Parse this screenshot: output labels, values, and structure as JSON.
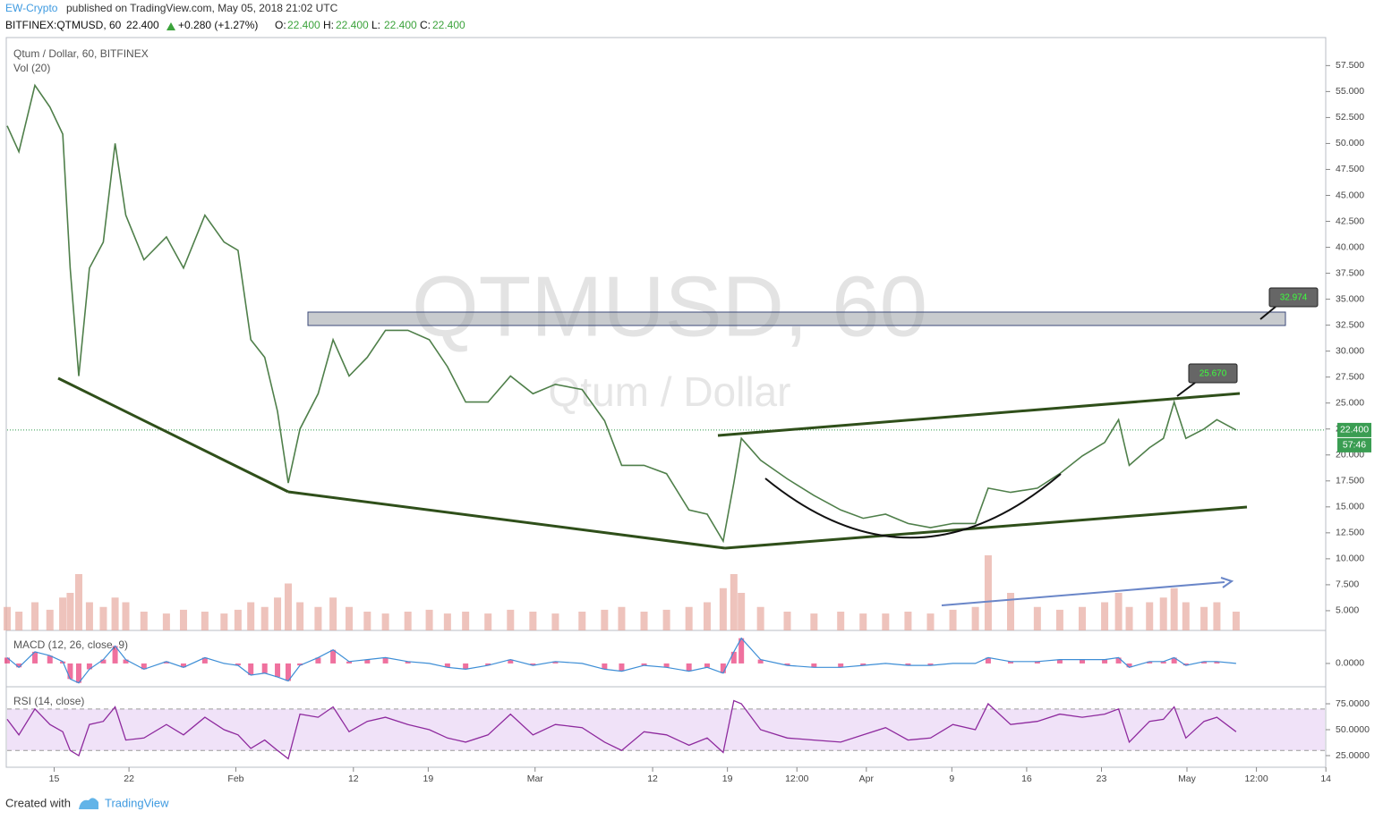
{
  "header": {
    "author": "EW-Crypto",
    "published": "published on TradingView.com, May 05, 2018 21:02 UTC",
    "symbol": "BITFINEX:QTMUSD, 60",
    "last": "22.400",
    "change": "+0.280 (+1.27%)",
    "ohlc": [
      {
        "label": "O:",
        "value": "22.400"
      },
      {
        "label": "H:",
        "value": "22.400"
      },
      {
        "label": "L:",
        "value": "22.400"
      },
      {
        "label": "C:",
        "value": "22.400"
      }
    ]
  },
  "footer": {
    "created": "Created with",
    "brand": "TradingView"
  },
  "chart_data": {
    "type": "line",
    "watermark": "QTMUSD, 60",
    "watermark_sub": "Qtum / Dollar",
    "price_label": "22.400",
    "countdown": "57:46",
    "annotations": [
      "32.974",
      "25.670"
    ],
    "x": [
      10.6,
      11.7,
      13.2,
      14.6,
      15.8,
      16.5,
      17.3,
      18.3,
      19.6,
      20.7,
      21.7,
      23.4,
      25.5,
      27.1,
      29.1,
      30.9,
      32.2,
      33.4,
      34.7,
      35.9,
      36.9,
      38,
      39.7,
      41.1,
      42.6,
      44.3,
      46,
      48.1,
      50.1,
      51.8,
      53.5,
      55.6,
      57.7,
      59.8,
      61.9,
      64.4,
      66.5,
      68.1,
      70.2,
      72.3,
      74.4,
      76.1,
      77.6,
      78.6,
      79.3,
      81.1,
      83.6,
      86.1,
      88.6,
      90.7,
      92.8,
      94.9,
      97,
      99.1,
      101.2,
      102.4,
      104.5,
      107,
      109.1,
      111.2,
      113.3,
      114.6,
      115.6,
      117.5,
      118.8,
      119.8,
      120.9,
      122.6,
      123.8,
      125.6
    ],
    "xlim": [
      10.6,
      133.9
    ],
    "xticks": [
      {
        "value": 15,
        "label": "15"
      },
      {
        "value": 22,
        "label": "22"
      },
      {
        "value": 32,
        "label": "Feb"
      },
      {
        "value": 43,
        "label": "12"
      },
      {
        "value": 50,
        "label": "19"
      },
      {
        "value": 60,
        "label": "Mar"
      },
      {
        "value": 71,
        "label": "12"
      },
      {
        "value": 78,
        "label": "19"
      },
      {
        "value": 84.5,
        "label": "12:00"
      },
      {
        "value": 91,
        "label": "Apr"
      },
      {
        "value": 99,
        "label": "9"
      },
      {
        "value": 106,
        "label": "16"
      },
      {
        "value": 113,
        "label": "23"
      },
      {
        "value": 121,
        "label": "May"
      },
      {
        "value": 127.5,
        "label": "12:00"
      },
      {
        "value": 134,
        "label": "14"
      }
    ],
    "ylim": [
      3.1,
      60.2
    ],
    "yticks": [
      {
        "value": 5,
        "label": "5.000"
      },
      {
        "value": 7.5,
        "label": "7.500"
      },
      {
        "value": 10,
        "label": "10.000"
      },
      {
        "value": 12.5,
        "label": "12.500"
      },
      {
        "value": 15,
        "label": "15.000"
      },
      {
        "value": 17.5,
        "label": "17.500"
      },
      {
        "value": 20,
        "label": "20.000"
      },
      {
        "value": 22.5,
        "label": "22.500"
      },
      {
        "value": 25,
        "label": "25.000"
      },
      {
        "value": 27.5,
        "label": "27.500"
      },
      {
        "value": 30,
        "label": "30.000"
      },
      {
        "value": 32.5,
        "label": "32.500"
      },
      {
        "value": 35,
        "label": "35.000"
      },
      {
        "value": 37.5,
        "label": "37.500"
      },
      {
        "value": 40,
        "label": "40.000"
      },
      {
        "value": 42.5,
        "label": "42.500"
      },
      {
        "value": 45,
        "label": "45.000"
      },
      {
        "value": 47.5,
        "label": "47.500"
      },
      {
        "value": 50,
        "label": "50.000"
      },
      {
        "value": 52.5,
        "label": "52.500"
      },
      {
        "value": 55,
        "label": "55.000"
      },
      {
        "value": 57.5,
        "label": "57.500"
      }
    ],
    "series": [
      {
        "name": "Qtum / Dollar, 60, BITFINEX",
        "color": "#4f7f4a",
        "values": [
          51.7,
          49.2,
          55.6,
          53.5,
          50.9,
          38,
          27.6,
          38,
          40.5,
          50,
          43.1,
          38.8,
          41,
          38,
          43.1,
          40.5,
          39.7,
          31.1,
          29.4,
          24.2,
          17.3,
          22.5,
          25.9,
          31.1,
          27.6,
          29.4,
          32,
          32,
          31.1,
          28.5,
          25.1,
          25.1,
          27.6,
          25.9,
          26.8,
          26.3,
          23.3,
          19,
          19,
          18.2,
          14.7,
          14.3,
          11.7,
          17.3,
          21.6,
          19.5,
          17.7,
          16.1,
          14.7,
          13.9,
          14.3,
          13.4,
          13,
          13.4,
          13.4,
          16.8,
          16.4,
          16.8,
          18.2,
          19.9,
          21.2,
          23.4,
          19,
          20.7,
          21.6,
          25.1,
          21.6,
          22.5,
          23.4,
          22.4
        ]
      }
    ],
    "volume": {
      "name": "Vol (20)",
      "color": "#e7a9a0",
      "ylim": [
        0,
        100
      ],
      "values": [
        25,
        20,
        30,
        22,
        35,
        40,
        60,
        30,
        25,
        35,
        30,
        20,
        18,
        22,
        20,
        18,
        22,
        30,
        25,
        35,
        50,
        30,
        25,
        35,
        25,
        20,
        18,
        20,
        22,
        18,
        20,
        18,
        22,
        20,
        18,
        20,
        22,
        25,
        20,
        22,
        25,
        30,
        45,
        60,
        40,
        25,
        20,
        18,
        20,
        18,
        18,
        20,
        18,
        22,
        25,
        80,
        40,
        25,
        22,
        25,
        30,
        40,
        25,
        30,
        35,
        45,
        30,
        25,
        30,
        20
      ]
    },
    "macd": {
      "name": "MACD (12, 26, close, 9)",
      "color": "#3d8ed6",
      "ylim": [
        -1.2,
        1.7
      ],
      "yticks": [
        {
          "value": 0,
          "label": "0.0000"
        }
      ],
      "values": [
        0.3,
        -0.2,
        0.6,
        0.4,
        0.1,
        -0.8,
        -1,
        -0.3,
        0.2,
        0.9,
        0.2,
        -0.3,
        0.1,
        -0.2,
        0.3,
        0,
        -0.1,
        -0.6,
        -0.5,
        -0.7,
        -0.9,
        -0.1,
        0.3,
        0.7,
        0.1,
        0.2,
        0.3,
        0.1,
        0,
        -0.2,
        -0.3,
        -0.1,
        0.2,
        -0.1,
        0.1,
        0,
        -0.3,
        -0.4,
        -0.1,
        -0.2,
        -0.4,
        -0.2,
        -0.5,
        0.6,
        1.3,
        0.2,
        -0.1,
        -0.2,
        -0.2,
        -0.1,
        0,
        -0.1,
        -0.1,
        0,
        0,
        0.3,
        0.1,
        0.1,
        0.2,
        0.2,
        0.2,
        0.3,
        -0.2,
        0.1,
        0.1,
        0.3,
        -0.1,
        0.1,
        0.1,
        0
      ]
    },
    "rsi": {
      "name": "RSI (14, close)",
      "color": "#8e2a9e",
      "ylim": [
        13.8,
        91.4
      ],
      "band": [
        30,
        70
      ],
      "yticks": [
        {
          "value": 25,
          "label": "25.0000"
        },
        {
          "value": 50,
          "label": "50.0000"
        },
        {
          "value": 75,
          "label": "75.0000"
        }
      ],
      "values": [
        60,
        45,
        70,
        55,
        48,
        30,
        25,
        55,
        58,
        72,
        40,
        42,
        55,
        45,
        62,
        50,
        45,
        32,
        40,
        30,
        22,
        65,
        62,
        72,
        48,
        58,
        62,
        55,
        50,
        42,
        38,
        45,
        65,
        45,
        55,
        52,
        38,
        30,
        48,
        45,
        35,
        42,
        28,
        78,
        75,
        50,
        42,
        40,
        38,
        45,
        52,
        40,
        42,
        55,
        50,
        75,
        55,
        58,
        65,
        62,
        65,
        70,
        38,
        58,
        60,
        72,
        42,
        58,
        62,
        48
      ]
    }
  }
}
